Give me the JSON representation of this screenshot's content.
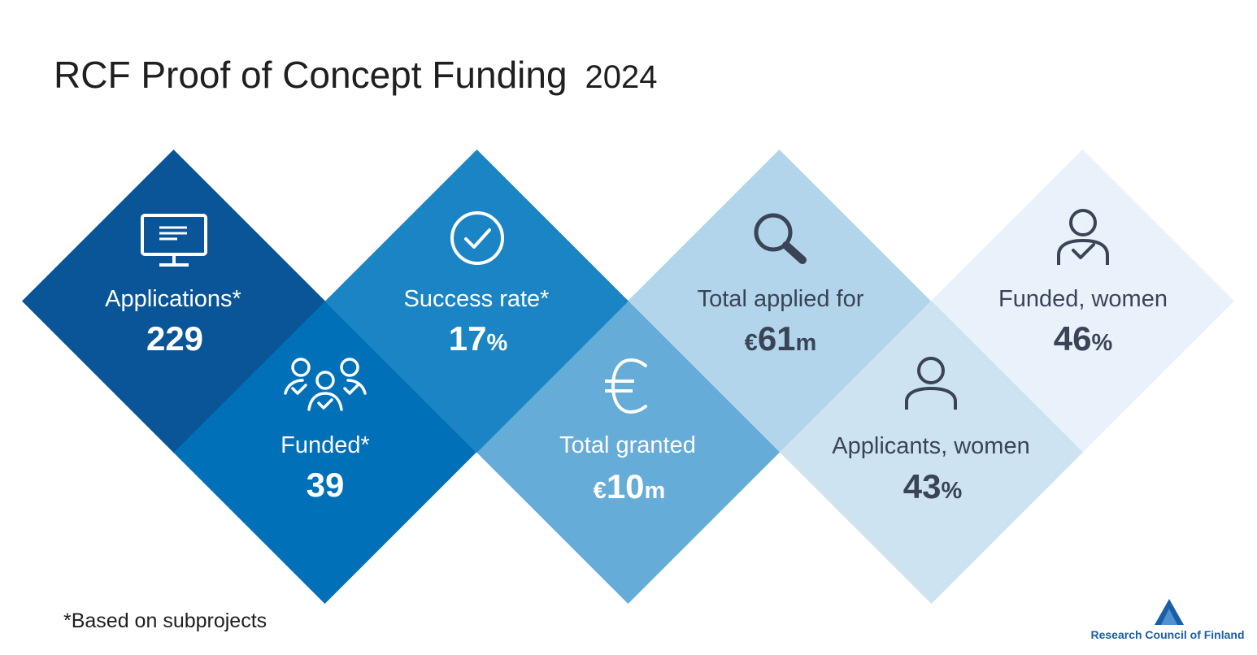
{
  "header": {
    "title": "RCF Proof of Concept Funding",
    "year": "2024"
  },
  "stats": {
    "applications": {
      "label": "Applications*",
      "value": "229"
    },
    "funded": {
      "label": "Funded*",
      "value": "39"
    },
    "success_rate": {
      "label": "Success rate*",
      "value": "17",
      "unit": "%"
    },
    "total_granted": {
      "label": "Total granted",
      "prefix": "€",
      "value": "10",
      "unit": "m"
    },
    "total_applied": {
      "label": "Total applied for",
      "prefix": "€",
      "value": "61",
      "unit": "m"
    },
    "applicants_women": {
      "label": "Applicants, women",
      "value": "43",
      "unit": "%"
    },
    "funded_women": {
      "label": "Funded, women",
      "value": "46",
      "unit": "%"
    }
  },
  "icons": {
    "applications": "monitor-icon",
    "funded": "group-check-icon",
    "success_rate": "check-circle-icon",
    "total_granted": "euro-icon",
    "total_applied": "magnifier-icon",
    "applicants_women": "person-icon",
    "funded_women": "person-check-icon"
  },
  "footer": {
    "footnote": "*Based on subprojects",
    "logo_text": "Research Council of Finland"
  },
  "colors": {
    "diamond_1": "#0a5597",
    "diamond_2": "#0070b8",
    "diamond_3": "#1b84c5",
    "diamond_4": "#66acd8",
    "diamond_5": "#b2d5ec",
    "diamond_6": "#cde3f2",
    "diamond_7": "#e9f2fb",
    "dark_text": "#3a4456",
    "brand": "#1a5ea8"
  }
}
